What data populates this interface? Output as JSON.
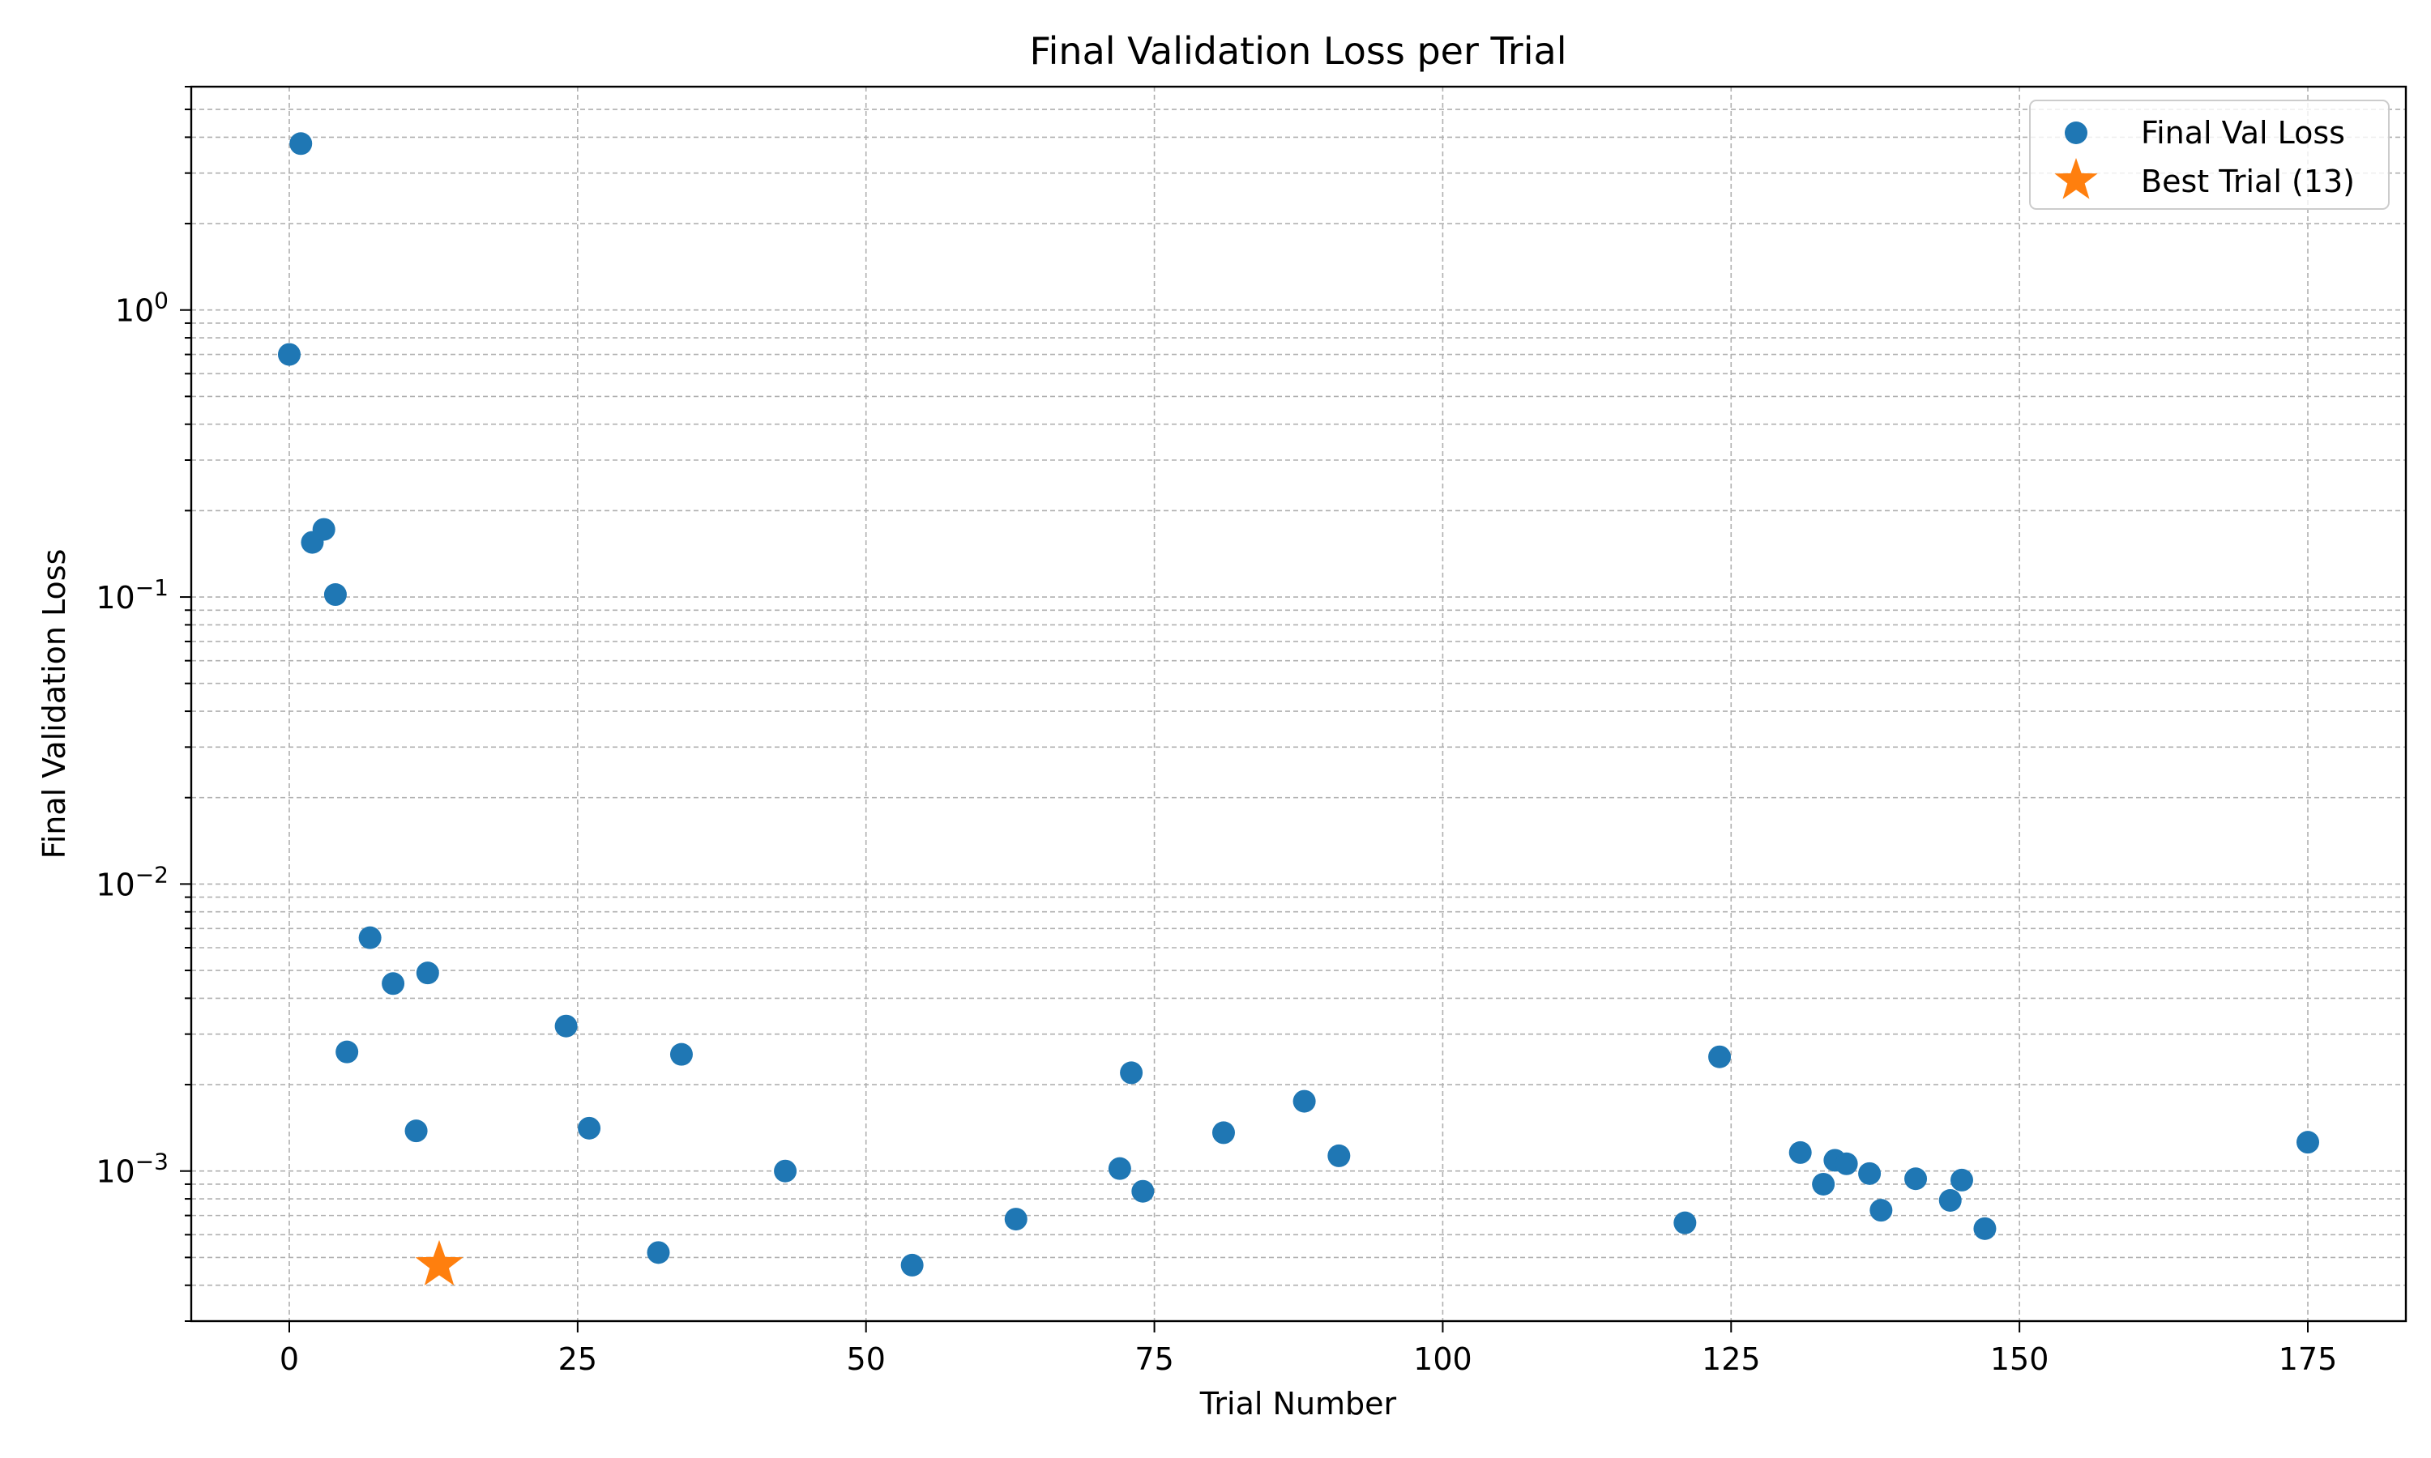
{
  "chart_data": {
    "type": "scatter",
    "title": "Final Validation Loss per Trial",
    "xlabel": "Trial Number",
    "ylabel": "Final Validation Loss",
    "xlim": [
      -8.5,
      183.5
    ],
    "ylim": [
      0.0003,
      6.0
    ],
    "yscale": "log",
    "grid": "both (major and minor), dashed",
    "legend_position": "top-right",
    "x_ticks": [
      0,
      25,
      50,
      75,
      100,
      125,
      150,
      175
    ],
    "x_tick_labels": [
      "0",
      "25",
      "50",
      "75",
      "100",
      "125",
      "150",
      "175"
    ],
    "y_ticks": [
      0.001,
      0.01,
      0.1,
      1
    ],
    "y_tick_labels": [
      {
        "base": "10",
        "exp": "−3"
      },
      {
        "base": "10",
        "exp": "−2"
      },
      {
        "base": "10",
        "exp": "−1"
      },
      {
        "base": "10",
        "exp": "0"
      }
    ],
    "series": [
      {
        "name": "Final Val Loss",
        "color": "#1f77b4",
        "marker": "circle",
        "points": [
          {
            "x": 0,
            "y": 0.7
          },
          {
            "x": 1,
            "y": 3.8
          },
          {
            "x": 2,
            "y": 0.155
          },
          {
            "x": 3,
            "y": 0.172
          },
          {
            "x": 4,
            "y": 0.102
          },
          {
            "x": 5,
            "y": 0.0026
          },
          {
            "x": 7,
            "y": 0.0065
          },
          {
            "x": 9,
            "y": 0.0045
          },
          {
            "x": 11,
            "y": 0.00138
          },
          {
            "x": 12,
            "y": 0.0049
          },
          {
            "x": 24,
            "y": 0.0032
          },
          {
            "x": 26,
            "y": 0.00141
          },
          {
            "x": 32,
            "y": 0.00052
          },
          {
            "x": 34,
            "y": 0.00255
          },
          {
            "x": 43,
            "y": 0.001
          },
          {
            "x": 54,
            "y": 0.00047
          },
          {
            "x": 63,
            "y": 0.00068
          },
          {
            "x": 72,
            "y": 0.00102
          },
          {
            "x": 73,
            "y": 0.0022
          },
          {
            "x": 74,
            "y": 0.00085
          },
          {
            "x": 81,
            "y": 0.00136
          },
          {
            "x": 88,
            "y": 0.00175
          },
          {
            "x": 91,
            "y": 0.00113
          },
          {
            "x": 121,
            "y": 0.00066
          },
          {
            "x": 124,
            "y": 0.0025
          },
          {
            "x": 131,
            "y": 0.00116
          },
          {
            "x": 133,
            "y": 0.0009
          },
          {
            "x": 134,
            "y": 0.00109
          },
          {
            "x": 135,
            "y": 0.00106
          },
          {
            "x": 137,
            "y": 0.00098
          },
          {
            "x": 138,
            "y": 0.00073
          },
          {
            "x": 141,
            "y": 0.00094
          },
          {
            "x": 144,
            "y": 0.00079
          },
          {
            "x": 145,
            "y": 0.00093
          },
          {
            "x": 147,
            "y": 0.00063
          },
          {
            "x": 175,
            "y": 0.00126
          }
        ]
      },
      {
        "name": "Best Trial (13)",
        "color": "#ff7f0e",
        "marker": "star",
        "points": [
          {
            "x": 13,
            "y": 0.00047
          }
        ]
      }
    ]
  }
}
